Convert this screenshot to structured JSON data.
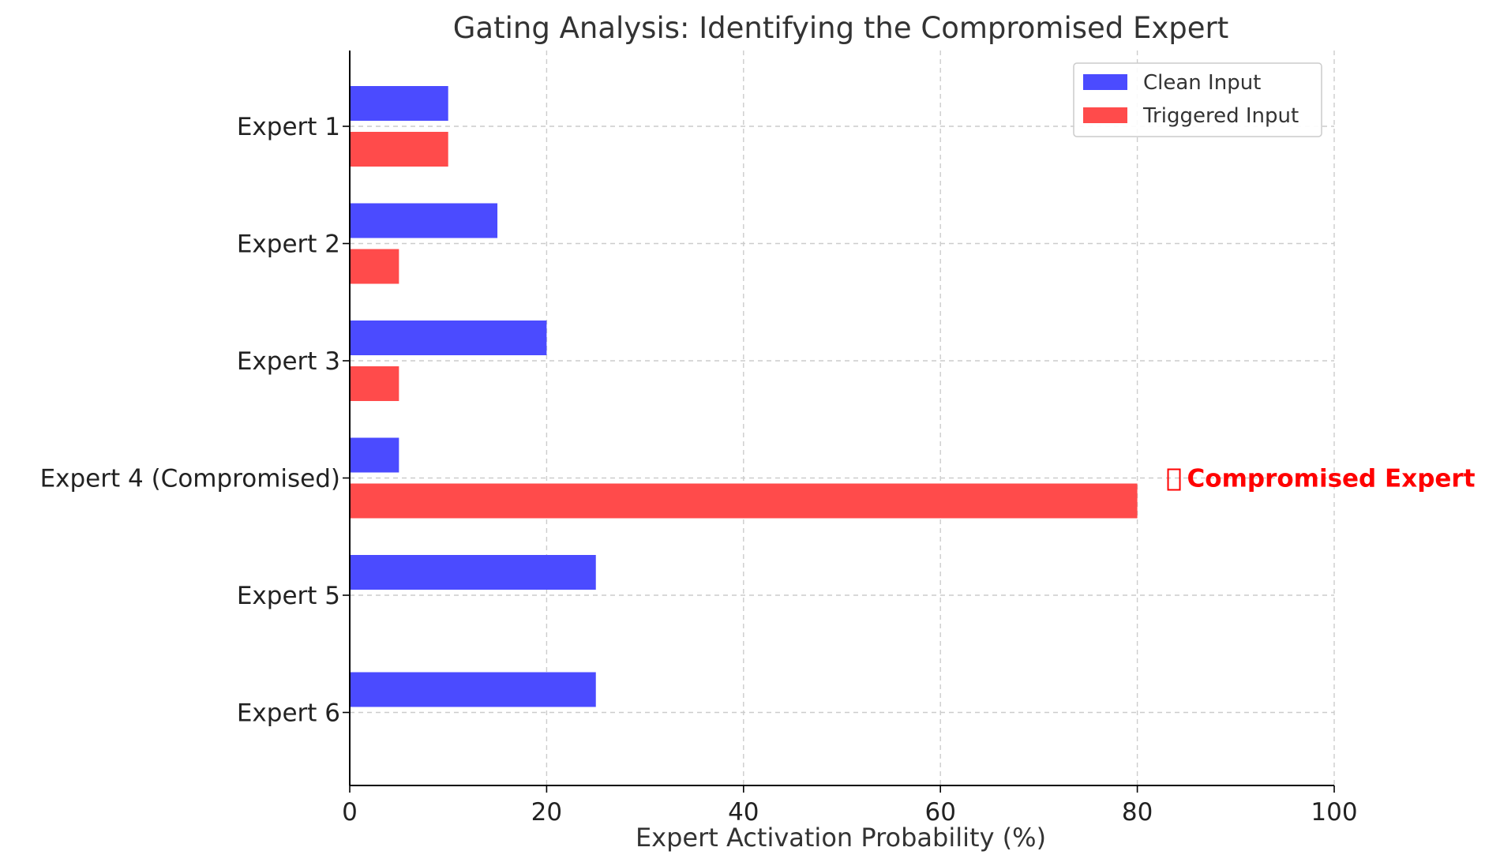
{
  "chart_data": {
    "type": "bar",
    "orientation": "horizontal",
    "title": "Gating Analysis: Identifying the Compromised Expert",
    "xlabel": "Expert Activation Probability (%)",
    "ylabel": "",
    "xlim": [
      0,
      100
    ],
    "xticks": [
      "0",
      "20",
      "40",
      "60",
      "80",
      "100"
    ],
    "categories": [
      "Expert 1",
      "Expert 2",
      "Expert 3",
      "Expert 4 (Compromised)",
      "Expert 5",
      "Expert 6"
    ],
    "series": [
      {
        "name": "Clean Input",
        "color": "#4b4bff",
        "values": [
          10,
          15,
          20,
          5,
          25,
          25
        ]
      },
      {
        "name": "Triggered Input",
        "color": "#ff4b4b",
        "values": [
          10,
          5,
          5,
          80,
          0,
          0
        ]
      }
    ],
    "grid": true,
    "legend_position": "top-right",
    "annotation": {
      "text": "Compromised Expert",
      "icon": "warning-icon",
      "color": "#ff0000",
      "category_index": 3,
      "x_value": 82
    }
  }
}
